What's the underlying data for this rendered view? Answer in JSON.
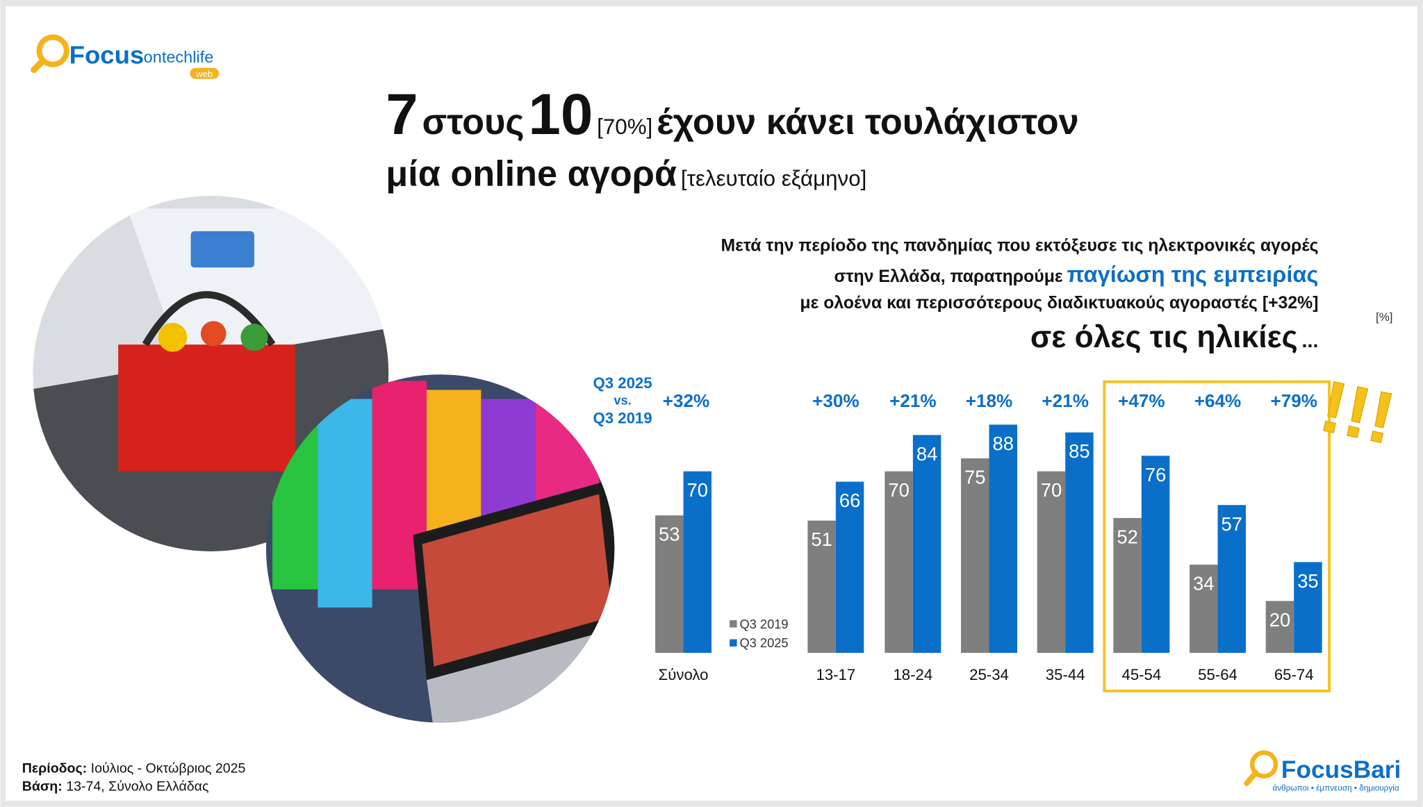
{
  "logo": {
    "brand": "Focus",
    "suffix": "ontechlife",
    "tag": "web"
  },
  "header": {
    "big1": "7",
    "word1": "στους",
    "big2": "10",
    "pct": "[70%]",
    "rest1": "έχουν κάνει τουλάχιστον",
    "line2": "μία online αγορά",
    "note": "[τελευταίο εξάμηνο]"
  },
  "subtitle": {
    "line1": "Μετά την περίοδο της πανδημίας που εκτόξευσε τις ηλεκτρονικές αγορές",
    "line2a": "στην Ελλάδα, παρατηρούμε",
    "line2b": "παγίωση της εμπειρίας",
    "line3": "με ολοένα και περισσότερους διαδικτυακούς αγοραστές [+32%]",
    "line4": "σε όλες τις ηλικίες",
    "ellipsis": "..."
  },
  "chart_data": {
    "type": "bar",
    "unit": "[%]",
    "comparison": [
      "Q3 2025",
      "vs.",
      "Q3 2019"
    ],
    "categories": [
      "Σύνολο",
      "13-17",
      "18-24",
      "25-34",
      "35-44",
      "45-54",
      "55-64",
      "65-74"
    ],
    "change_labels": [
      "+32%",
      "+30%",
      "+21%",
      "+18%",
      "+21%",
      "+47%",
      "+64%",
      "+79%"
    ],
    "series": [
      {
        "name": "Q3 2019",
        "color": "#7f7f7f",
        "values": [
          53,
          51,
          70,
          75,
          70,
          52,
          34,
          20
        ]
      },
      {
        "name": "Q3 2025",
        "color": "#0a6fc9",
        "values": [
          70,
          66,
          84,
          88,
          85,
          76,
          57,
          35
        ]
      }
    ],
    "exclaim": "!!!"
  },
  "footer": {
    "period_label": "Περίοδος:",
    "period": "Ιούλιος - Οκτώβριος 2025",
    "base_label": "Βάση:",
    "base": "13-74, Σύνολο Ελλάδας"
  },
  "brand": {
    "name": "FocusBari",
    "tagline": "άνθρωποι • έμπνευση • δημιουργία"
  }
}
